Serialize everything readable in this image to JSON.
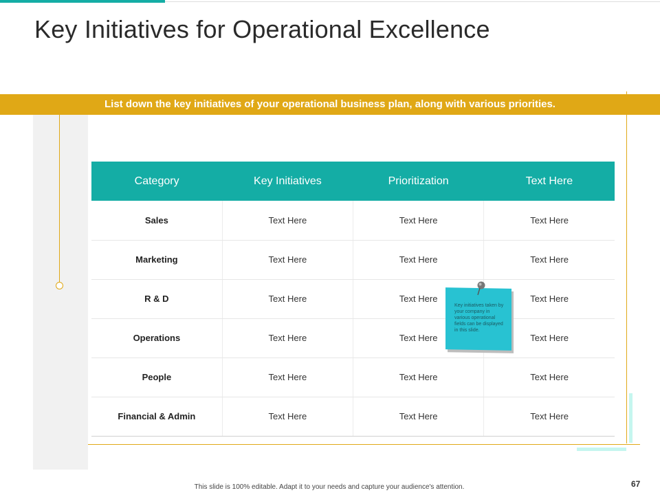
{
  "slide": {
    "title": "Key Initiatives for Operational Excellence",
    "banner": "List down the key initiatives of your operational business plan, along with various priorities.",
    "footer": "This slide is 100% editable. Adapt it to your needs and capture your audience's attention.",
    "page_number": "67"
  },
  "table": {
    "headers": [
      "Category",
      "Key Initiatives",
      "Prioritization",
      "Text Here"
    ],
    "rows": [
      [
        "Sales",
        "Text Here",
        "Text Here",
        "Text Here"
      ],
      [
        "Marketing",
        "Text Here",
        "Text Here",
        "Text Here"
      ],
      [
        "R & D",
        "Text Here",
        "Text Here",
        "Text Here"
      ],
      [
        "Operations",
        "Text Here",
        "Text Here",
        "Text Here"
      ],
      [
        "People",
        "Text Here",
        "Text Here",
        "Text Here"
      ],
      [
        "Financial & Admin",
        "Text Here",
        "Text Here",
        "Text Here"
      ]
    ]
  },
  "sticky_note": {
    "text": "Key initiatives taken by your company in various operational fields can be displayed in this slide.",
    "icon": "pushpin-icon"
  },
  "colors": {
    "teal": "#14ada5",
    "gold": "#e0a816",
    "note": "#28c2d2",
    "aqua": "#c5f6ef"
  }
}
